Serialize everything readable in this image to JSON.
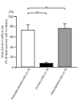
{
  "chart_data": {
    "type": "bar",
    "y_unit": "(%)",
    "y_label": [
      "Vascularized cell counts",
      "(% of total counted cell numbers)"
    ],
    "categories": [
      "Nonvascularized cells (n=3)",
      "Control cells (n=3)",
      "Vascularized cells (n=3)"
    ],
    "values": [
      72,
      7,
      76
    ],
    "errors": [
      11,
      2,
      9
    ],
    "colors": [
      "#ffffff",
      "#000000",
      "#9a9a9a"
    ],
    "ylim": [
      0,
      100
    ],
    "yticks": [
      0,
      20,
      40,
      60,
      80,
      100
    ],
    "grid": false,
    "significance": [
      {
        "from": 0,
        "to": 1,
        "label": "*"
      },
      {
        "from": 0,
        "to": 2,
        "label": "*"
      }
    ]
  }
}
